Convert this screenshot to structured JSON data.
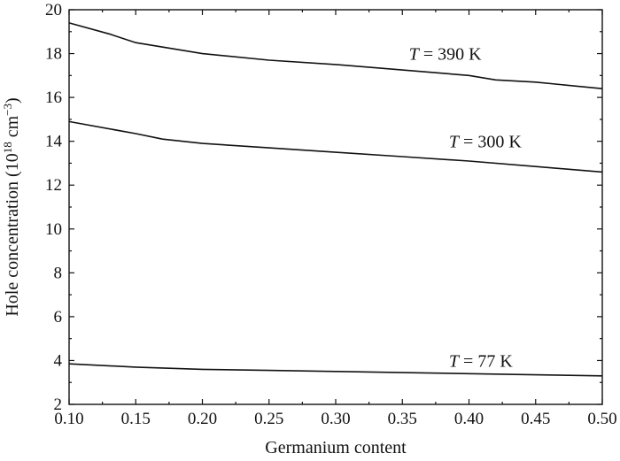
{
  "chart_data": {
    "type": "line",
    "xlabel": "Germanium content",
    "ylabel": {
      "main": "Hole concentration (10",
      "exp1": "18",
      "mid": " cm",
      "exp2": "−3",
      "end": ")"
    },
    "xlim": [
      0.1,
      0.5
    ],
    "ylim": [
      2,
      20
    ],
    "xticks": [
      0.1,
      0.15,
      0.2,
      0.25,
      0.3,
      0.35,
      0.4,
      0.45,
      0.5
    ],
    "xtick_labels": [
      "0.10",
      "0.15",
      "0.20",
      "0.25",
      "0.30",
      "0.35",
      "0.40",
      "0.45",
      "0.50"
    ],
    "yticks": [
      2,
      4,
      6,
      8,
      10,
      12,
      14,
      16,
      18,
      20
    ],
    "ytick_labels": [
      "2",
      "4",
      "6",
      "8",
      "10",
      "12",
      "14",
      "16",
      "18",
      "20"
    ],
    "grid": false,
    "line_color": "#111111",
    "series": [
      {
        "x": [
          0.1,
          0.13,
          0.15,
          0.2,
          0.25,
          0.3,
          0.35,
          0.4,
          0.42,
          0.45,
          0.5
        ],
        "y": [
          19.4,
          18.9,
          18.5,
          18.0,
          17.7,
          17.5,
          17.25,
          17.0,
          16.8,
          16.7,
          16.4
        ]
      },
      {
        "x": [
          0.1,
          0.15,
          0.17,
          0.2,
          0.25,
          0.3,
          0.35,
          0.4,
          0.45,
          0.5
        ],
        "y": [
          14.9,
          14.35,
          14.1,
          13.9,
          13.7,
          13.5,
          13.3,
          13.1,
          12.85,
          12.6
        ]
      },
      {
        "x": [
          0.1,
          0.15,
          0.2,
          0.25,
          0.3,
          0.35,
          0.4,
          0.45,
          0.5
        ],
        "y": [
          3.85,
          3.7,
          3.6,
          3.55,
          3.5,
          3.45,
          3.4,
          3.35,
          3.3
        ]
      }
    ],
    "annotations": [
      {
        "var": "T",
        "text": " = 390 K",
        "x": 0.355,
        "y": 18.0
      },
      {
        "var": "T",
        "text": " = 300 K",
        "x": 0.385,
        "y": 14.0
      },
      {
        "var": "T",
        "text": " = 77 K",
        "x": 0.385,
        "y": 4.0
      }
    ]
  }
}
